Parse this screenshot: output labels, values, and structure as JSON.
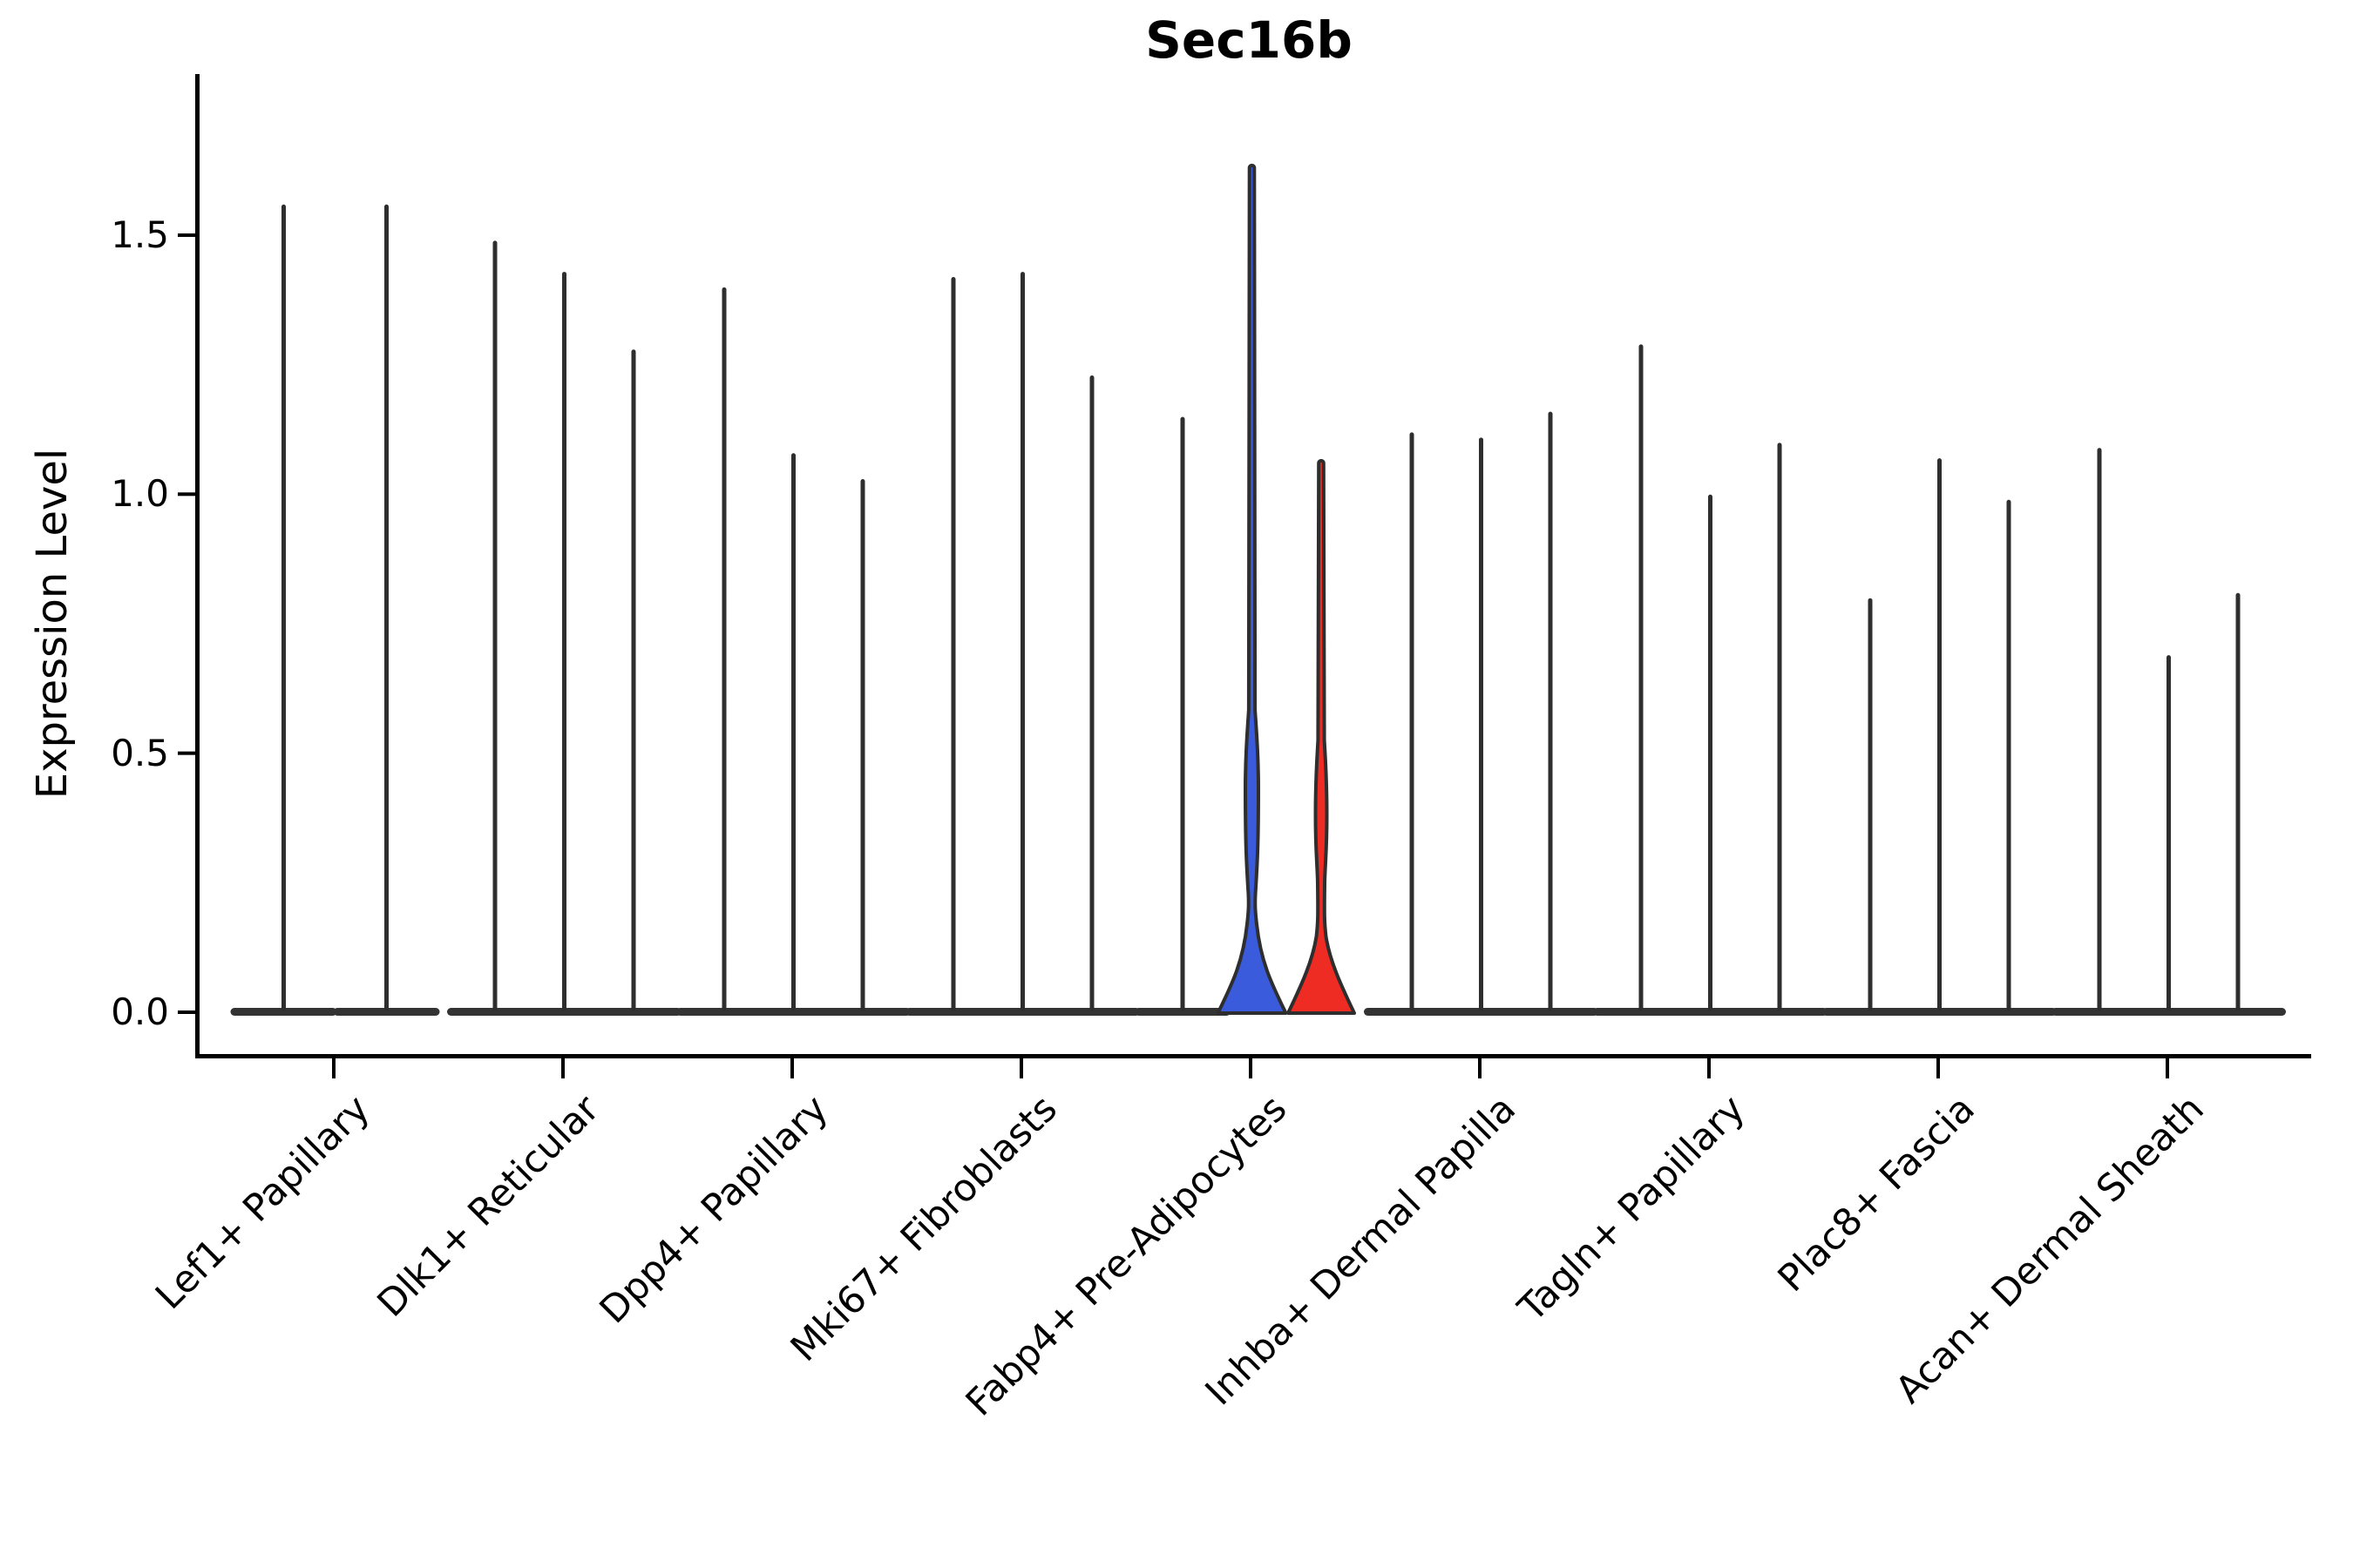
{
  "figure": {
    "background": "#ffffff"
  },
  "chart_data": {
    "type": "violin",
    "title": "Sec16b",
    "ylabel": "Expression Level",
    "xlabel": "",
    "grid": false,
    "legend": null,
    "yticks": [
      {
        "label": "0.0",
        "value": 0.0
      },
      {
        "label": "0.5",
        "value": 0.5
      },
      {
        "label": "1.0",
        "value": 1.0
      },
      {
        "label": "1.5",
        "value": 1.5
      }
    ],
    "ylim": [
      -0.08,
      1.81
    ],
    "colors": {
      "violin_outline": "#2e2e2e",
      "foot": "#333333",
      "blue_fill": "#3A5BDB",
      "red_fill": "#EE2C23",
      "axis": "#000000"
    },
    "categories": [
      {
        "label": "Lef1+ Papillary",
        "violins": [
          {
            "value": 1.56
          },
          {
            "value": 1.56
          }
        ]
      },
      {
        "label": "Dlk1+ Reticular",
        "violins": [
          {
            "value": 1.49
          },
          {
            "value": 1.43
          },
          {
            "value": 1.28
          }
        ]
      },
      {
        "label": "Dpp4+ Papillary",
        "violins": [
          {
            "value": 1.4
          },
          {
            "value": 1.08
          },
          {
            "value": 1.03
          }
        ]
      },
      {
        "label": "Mki67+ Fibroblasts",
        "violins": [
          {
            "value": 1.42
          },
          {
            "value": 1.43
          },
          {
            "value": 1.23
          }
        ]
      },
      {
        "label": "Fabp4+ Pre-Adipocytes",
        "violins": [
          {
            "value": 1.15
          },
          {
            "value": 1.64,
            "fill": "#3A5BDB",
            "profile": {
              "base_half": 39,
              "base_top_v": 0.17,
              "lens_bot_v": 0.23,
              "lens_mid_v": 0.432,
              "lens_top_v": 0.584,
              "lens_half": 7.5
            }
          },
          {
            "value": 1.07,
            "fill": "#EE2C23",
            "profile": {
              "base_half": 38,
              "base_top_v": 0.146,
              "lens_bot_v": 0.256,
              "lens_mid_v": 0.382,
              "lens_top_v": 0.525,
              "lens_half": 6.5
            }
          }
        ]
      },
      {
        "label": "Inhba+ Dermal Papilla",
        "violins": [
          {
            "value": 1.12
          },
          {
            "value": 1.11
          },
          {
            "value": 1.16
          }
        ]
      },
      {
        "label": "Tagln+ Papillary",
        "violins": [
          {
            "value": 1.29
          },
          {
            "value": 1.0
          },
          {
            "value": 1.1
          }
        ]
      },
      {
        "label": "Plac8+ Fascia",
        "violins": [
          {
            "value": 0.8
          },
          {
            "value": 1.07
          },
          {
            "value": 0.99
          }
        ]
      },
      {
        "label": "Acan+ Dermal Sheath",
        "violins": [
          {
            "value": 1.09
          },
          {
            "value": 0.69
          },
          {
            "value": 0.81
          }
        ]
      }
    ]
  }
}
